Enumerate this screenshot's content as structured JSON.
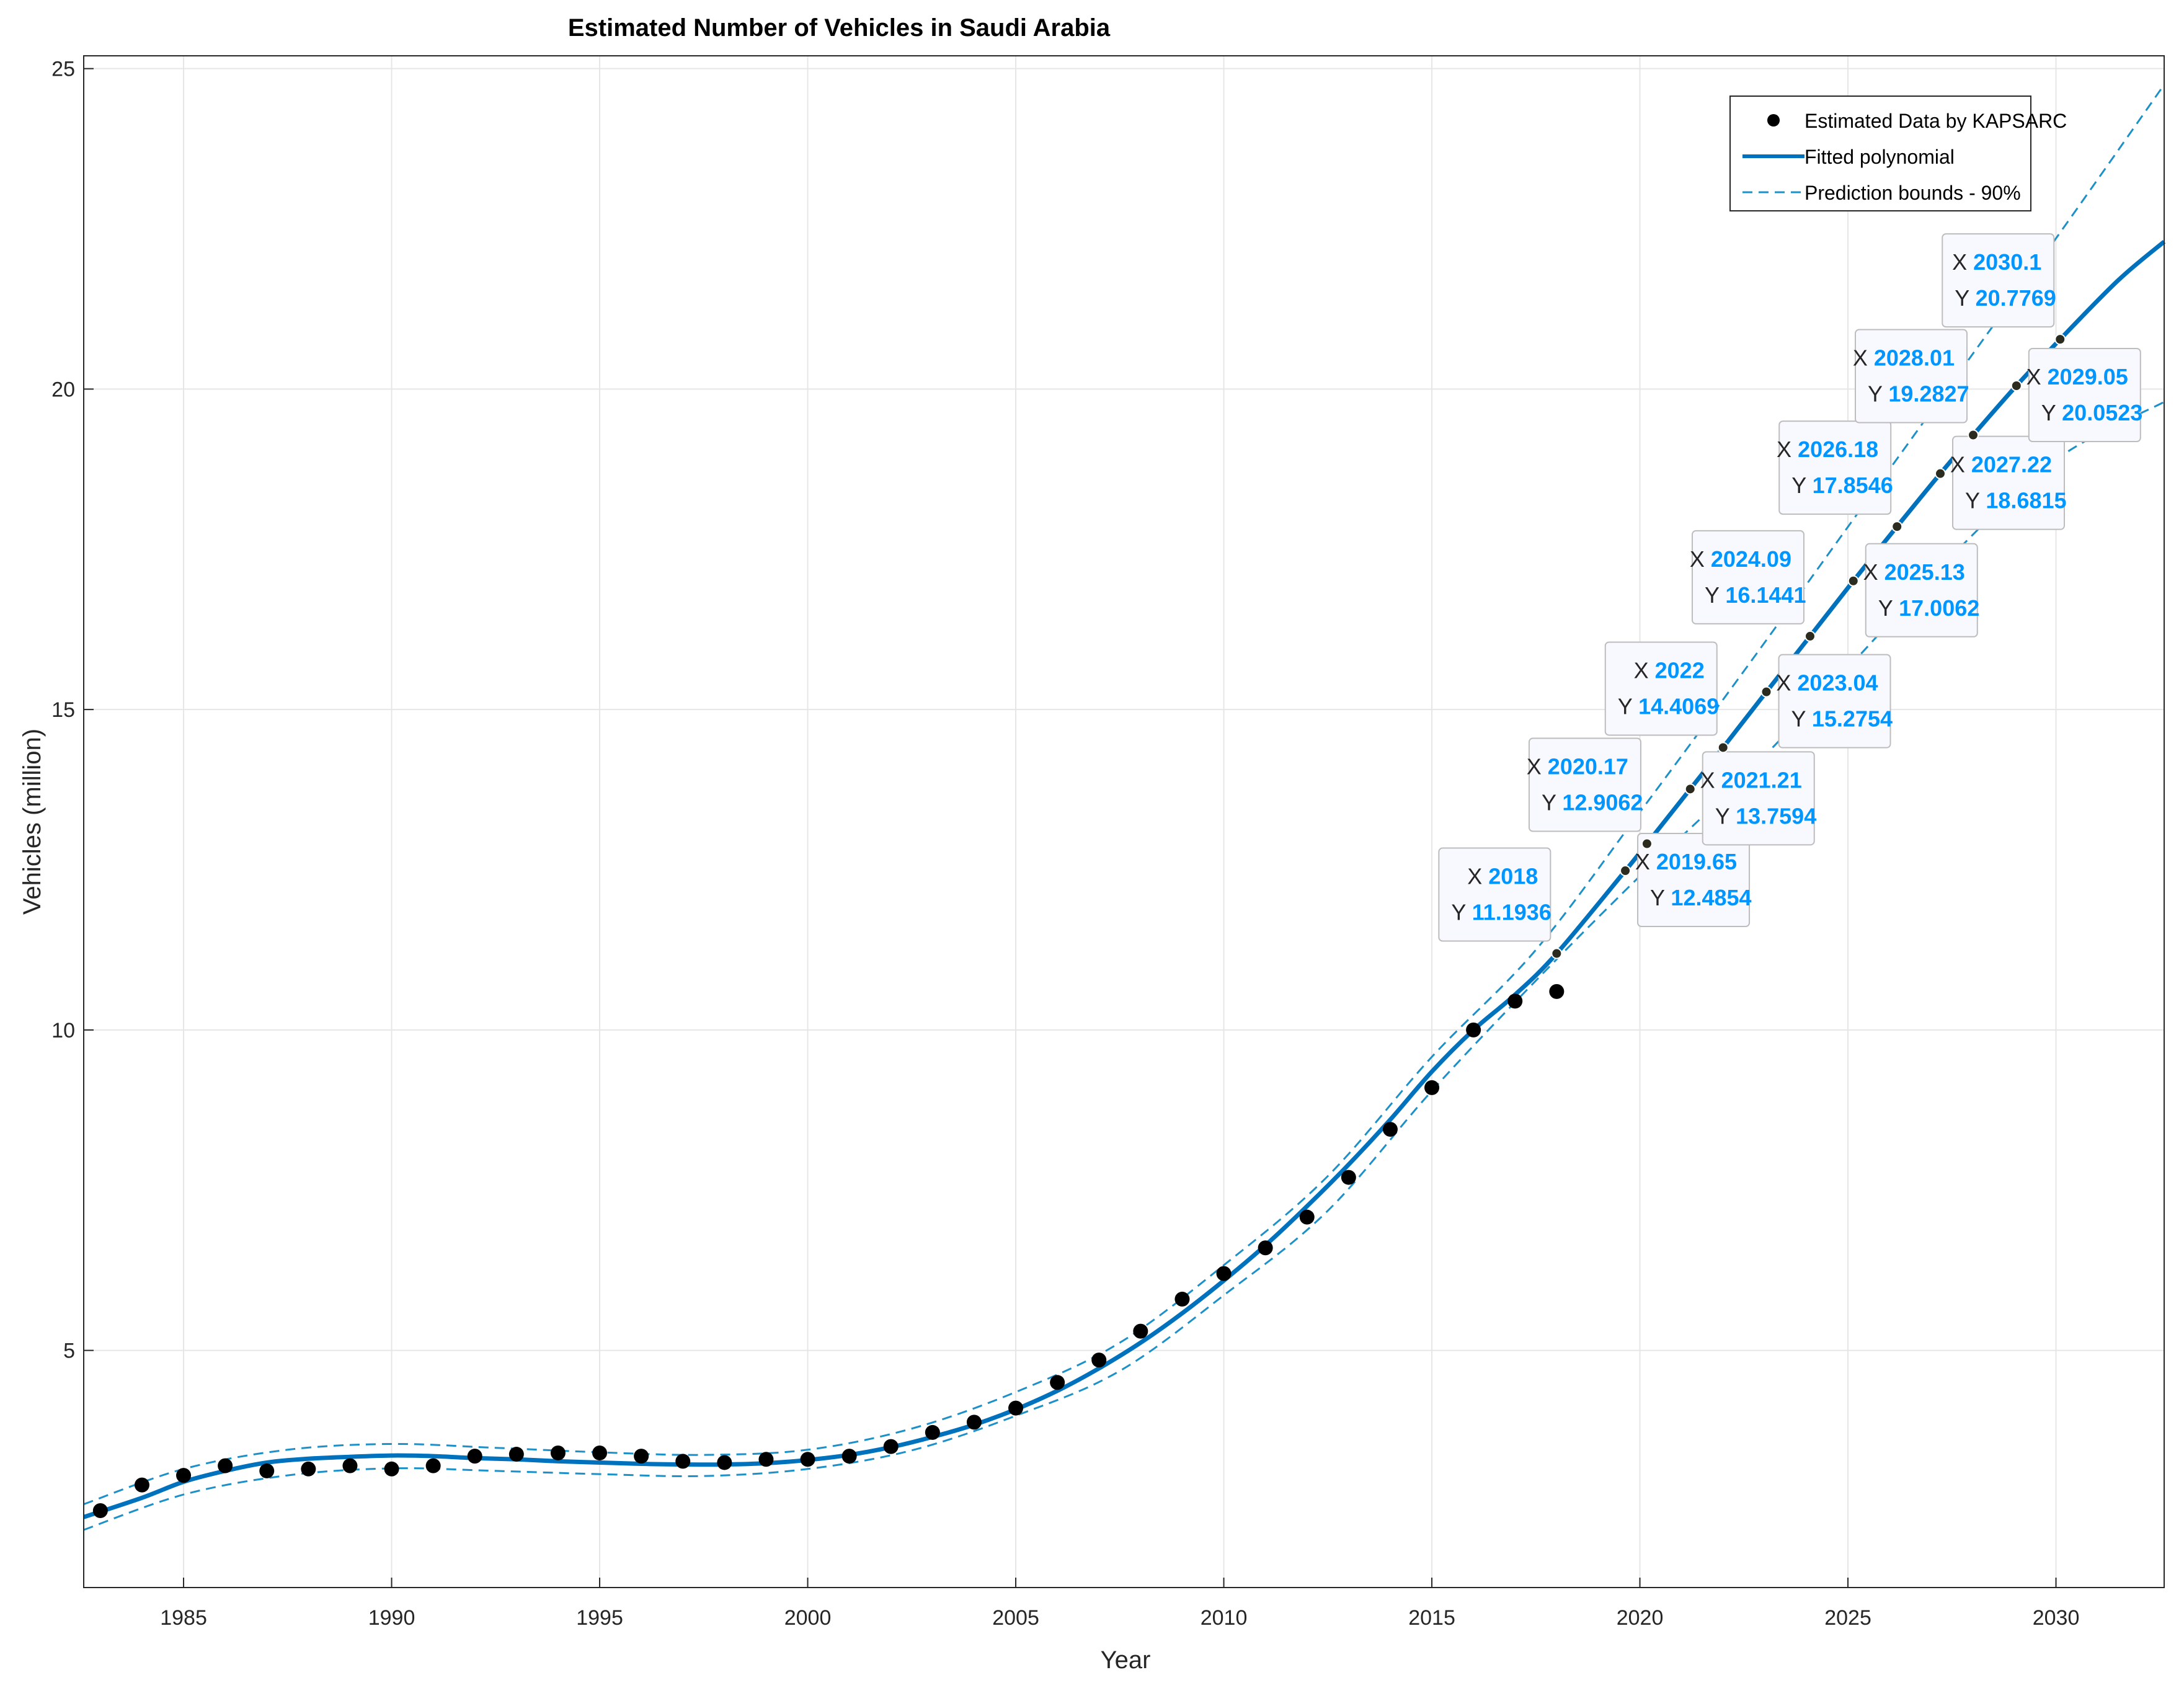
{
  "chart_data": {
    "type": "scatter",
    "title": "Estimated Number of Vehicles in Saudi Arabia",
    "xlabel": "Year",
    "ylabel": "Vehicles (million)",
    "xlim": [
      1982.6,
      2032.6
    ],
    "ylim": [
      1.3,
      25.2
    ],
    "xticks": [
      1985,
      1990,
      1995,
      2000,
      2005,
      2010,
      2015,
      2020,
      2025,
      2030
    ],
    "yticks": [
      5,
      10,
      15,
      20,
      25
    ],
    "grid": true,
    "legend_position": "top-right",
    "legend": [
      "Estimated Data by KAPSARC",
      "Fitted polynomial",
      "Prediction bounds - 90%"
    ],
    "series": [
      {
        "name": "Estimated Data by KAPSARC",
        "kind": "points",
        "x": [
          1983,
          1984,
          1985,
          1986,
          1987,
          1988,
          1989,
          1990,
          1991,
          1992,
          1993,
          1994,
          1995,
          1996,
          1997,
          1998,
          1999,
          2000,
          2001,
          2002,
          2003,
          2004,
          2005,
          2006,
          2007,
          2008,
          2009,
          2010,
          2011,
          2012,
          2013,
          2014,
          2015,
          2016,
          2017,
          2018
        ],
        "y": [
          2.5,
          2.9,
          3.05,
          3.2,
          3.12,
          3.15,
          3.2,
          3.15,
          3.2,
          3.35,
          3.38,
          3.4,
          3.4,
          3.35,
          3.27,
          3.25,
          3.3,
          3.3,
          3.35,
          3.5,
          3.72,
          3.88,
          4.1,
          4.5,
          4.85,
          5.3,
          5.8,
          6.2,
          6.6,
          7.08,
          7.7,
          8.45,
          9.1,
          10.0,
          10.45,
          10.6
        ]
      },
      {
        "name": "Fitted polynomial",
        "kind": "line",
        "x": [
          1982.6,
          1984,
          1985,
          1986,
          1987,
          1988,
          1989,
          1990,
          1991,
          1992,
          1993,
          1994,
          1995,
          1996,
          1997,
          1998,
          1999,
          2000,
          2001,
          2002,
          2003,
          2004,
          2005,
          2006,
          2007,
          2008,
          2009,
          2010,
          2011,
          2012,
          2013,
          2014,
          2015,
          2016,
          2017,
          2018,
          2019.65,
          2020.17,
          2021.21,
          2022,
          2023.04,
          2024.09,
          2025.13,
          2026.18,
          2027.22,
          2028.01,
          2029.05,
          2030.1,
          2031.5,
          2032.6
        ],
        "y": [
          2.4,
          2.7,
          2.95,
          3.12,
          3.25,
          3.31,
          3.34,
          3.36,
          3.35,
          3.32,
          3.3,
          3.27,
          3.25,
          3.23,
          3.22,
          3.22,
          3.24,
          3.29,
          3.37,
          3.49,
          3.65,
          3.84,
          4.08,
          4.37,
          4.72,
          5.12,
          5.58,
          6.09,
          6.64,
          7.25,
          7.9,
          8.6,
          9.35,
          10.0,
          10.55,
          11.1936,
          12.4854,
          12.9062,
          13.7594,
          14.4069,
          15.2754,
          16.1441,
          17.0062,
          17.8546,
          18.6815,
          19.2827,
          20.0523,
          20.7769,
          21.7,
          22.3
        ]
      },
      {
        "name": "Prediction bounds - 90% (upper)",
        "kind": "dashed",
        "x": [
          1982.6,
          1985,
          1987.5,
          1990,
          1992.5,
          1995,
          1997.5,
          2000,
          2002.5,
          2005,
          2007.5,
          2010,
          2012.5,
          2015,
          2017.5,
          2020,
          2022.5,
          2025,
          2027.5,
          2030,
          2032.6
        ],
        "y": [
          2.6,
          3.15,
          3.45,
          3.54,
          3.48,
          3.41,
          3.37,
          3.45,
          3.78,
          4.35,
          5.12,
          6.33,
          7.72,
          9.58,
          11.25,
          13.4,
          15.6,
          17.85,
          20.1,
          22.35,
          24.75
        ]
      },
      {
        "name": "Prediction bounds - 90% (lower)",
        "kind": "dashed",
        "x": [
          1982.6,
          1985,
          1987.5,
          1990,
          1992.5,
          1995,
          1997.5,
          2000,
          2002.5,
          2005,
          2007.5,
          2010,
          2012.5,
          2015,
          2017.5,
          2020,
          2022.5,
          2025,
          2027.5,
          2030,
          2032.6
        ],
        "y": [
          2.2,
          2.75,
          3.05,
          3.16,
          3.12,
          3.07,
          3.04,
          3.15,
          3.44,
          3.98,
          4.68,
          5.86,
          7.18,
          9.05,
          10.77,
          12.4,
          13.95,
          15.65,
          17.4,
          18.9,
          19.8
        ]
      }
    ],
    "annotations": [
      {
        "x": "2018",
        "y": "11.1936",
        "xv": 2018,
        "yv": 11.1936
      },
      {
        "x": "2019.65",
        "y": "12.4854",
        "xv": 2019.65,
        "yv": 12.4854
      },
      {
        "x": "2020.17",
        "y": "12.9062",
        "xv": 2020.17,
        "yv": 12.9062
      },
      {
        "x": "2021.21",
        "y": "13.7594",
        "xv": 2021.21,
        "yv": 13.7594
      },
      {
        "x": "2022",
        "y": "14.4069",
        "xv": 2022,
        "yv": 14.4069
      },
      {
        "x": "2023.04",
        "y": "15.2754",
        "xv": 2023.04,
        "yv": 15.2754
      },
      {
        "x": "2024.09",
        "y": "16.1441",
        "xv": 2024.09,
        "yv": 16.1441
      },
      {
        "x": "2025.13",
        "y": "17.0062",
        "xv": 2025.13,
        "yv": 17.0062
      },
      {
        "x": "2026.18",
        "y": "17.8546",
        "xv": 2026.18,
        "yv": 17.8546
      },
      {
        "x": "2027.22",
        "y": "18.6815",
        "xv": 2027.22,
        "yv": 18.6815
      },
      {
        "x": "2028.01",
        "y": "19.2827",
        "xv": 2028.01,
        "yv": 19.2827
      },
      {
        "x": "2029.05",
        "y": "20.0523",
        "xv": 2029.05,
        "yv": 20.0523
      },
      {
        "x": "2030.1",
        "y": "20.7769",
        "xv": 2030.1,
        "yv": 20.7769
      }
    ],
    "annotation_prefix_x": "X",
    "annotation_prefix_y": "Y",
    "colors": {
      "line": "#0072bd",
      "bounds": "#1e90c8",
      "points": "#000000",
      "tip_value": "#0096ff"
    }
  }
}
